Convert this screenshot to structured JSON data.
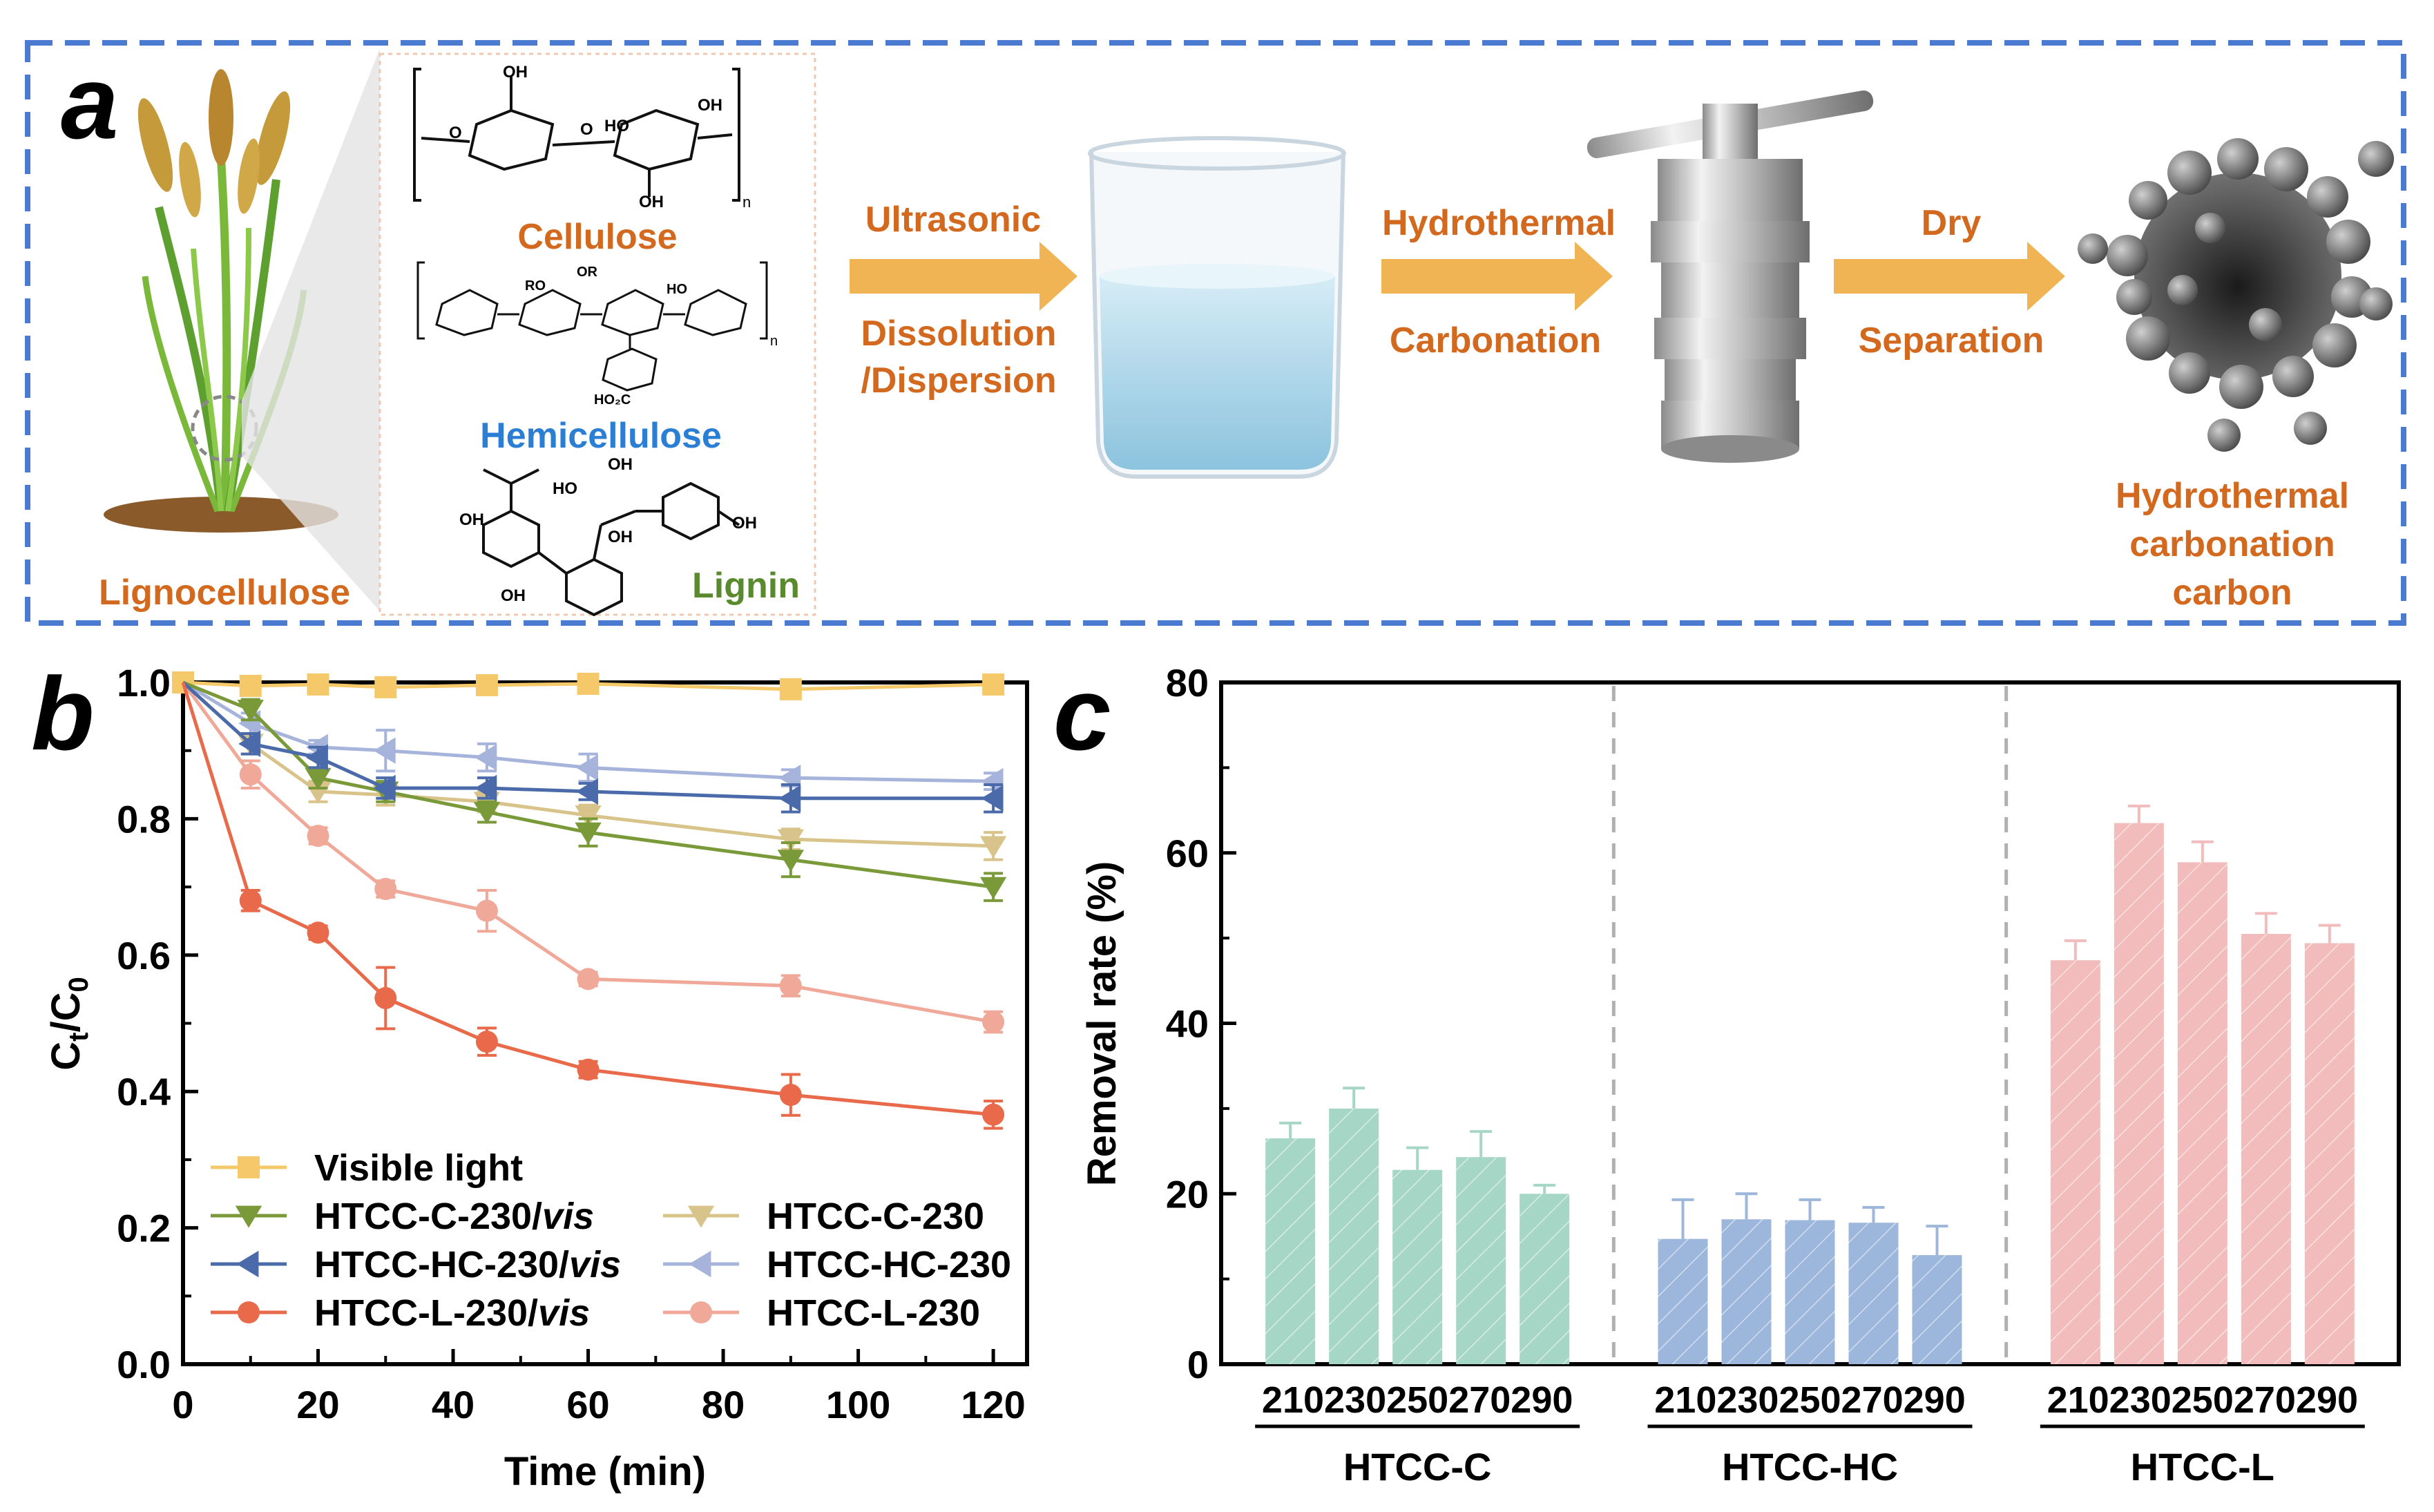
{
  "panel_a": {
    "letter": "a",
    "lignocellulose": "Lignocellulose",
    "cellulose": "Cellulose",
    "hemicellulose": "Hemicellulose",
    "lignin": "Lignin",
    "step1_top": "Ultrasonic",
    "step1_bottom_1": "Dissolution",
    "step1_bottom_2": "/Dispersion",
    "step2_top": "Hydrothermal",
    "step2_bottom": "Carbonation",
    "step3_top": "Dry",
    "step3_bottom": "Separation",
    "product_1": "Hydrothermal",
    "product_2": "carbonation",
    "product_3": "carbon",
    "chem_labels": {
      "oh": "OH",
      "o": "O",
      "n": "n",
      "ro": "RO",
      "or": "OR",
      "ho": "HO",
      "ho2c": "HO₂C"
    },
    "colors": {
      "orange": "#d2691e",
      "blue": "#2a7fd4",
      "green": "#5a8a2e",
      "border": "#4a7bd0",
      "arrow": "#f0b454"
    }
  },
  "chart_data": [
    {
      "panel": "b",
      "type": "line",
      "xlabel": "Time (min)",
      "ylabel_main": "C",
      "ylabel_sub1": "t",
      "ylabel_mid": "/C",
      "ylabel_sub2": "0",
      "xlim": [
        0,
        125
      ],
      "ylim": [
        0,
        1.0
      ],
      "x_ticks": [
        "0",
        "20",
        "40",
        "60",
        "80",
        "100",
        "120"
      ],
      "y_ticks": [
        "0.0",
        "0.2",
        "0.4",
        "0.6",
        "0.8",
        "1.0"
      ],
      "x": [
        0,
        10,
        20,
        30,
        45,
        60,
        90,
        120
      ],
      "series": [
        {
          "name": "Visible light",
          "italic": "",
          "marker": "square",
          "color": "#f5c96a",
          "values": [
            1.0,
            0.995,
            0.997,
            0.993,
            0.996,
            0.998,
            0.99,
            0.997
          ],
          "err": [
            0,
            0.01,
            0.01,
            0.01,
            0.008,
            0.006,
            0.01,
            0.008
          ]
        },
        {
          "name": "HTCC-C-230/",
          "italic": "vis",
          "marker": "tri-down",
          "color": "#7a9a3a",
          "values": [
            1.0,
            0.96,
            0.86,
            0.84,
            0.81,
            0.78,
            0.74,
            0.7
          ],
          "err": [
            0,
            0.015,
            0.015,
            0.015,
            0.015,
            0.02,
            0.025,
            0.02
          ]
        },
        {
          "name": "HTCC-HC-230/",
          "italic": "vis",
          "marker": "tri-left",
          "color": "#4a6aaa",
          "values": [
            1.0,
            0.91,
            0.89,
            0.845,
            0.845,
            0.84,
            0.83,
            0.83
          ],
          "err": [
            0,
            0.015,
            0.015,
            0.015,
            0.015,
            0.012,
            0.02,
            0.02
          ]
        },
        {
          "name": "HTCC-L-230/",
          "italic": "vis",
          "marker": "circle",
          "color": "#e86a4a",
          "values": [
            1.0,
            0.68,
            0.633,
            0.537,
            0.473,
            0.432,
            0.395,
            0.366
          ],
          "err": [
            0,
            0.015,
            0.01,
            0.045,
            0.02,
            0.012,
            0.03,
            0.02
          ]
        },
        {
          "name": "HTCC-C-230",
          "italic": "",
          "marker": "tri-down",
          "color": "#d8c48a",
          "values": [
            1.0,
            0.91,
            0.84,
            0.835,
            0.825,
            0.805,
            0.77,
            0.76
          ],
          "err": [
            0,
            0.015,
            0.015,
            0.015,
            0.015,
            0.015,
            0.015,
            0.02
          ]
        },
        {
          "name": "HTCC-HC-230",
          "italic": "",
          "marker": "tri-left",
          "color": "#a6b4dc",
          "values": [
            1.0,
            0.94,
            0.905,
            0.9,
            0.89,
            0.875,
            0.86,
            0.855
          ],
          "err": [
            0,
            0.015,
            0.01,
            0.03,
            0.02,
            0.02,
            0.012,
            0.012
          ]
        },
        {
          "name": "HTCC-L-230",
          "italic": "",
          "marker": "circle",
          "color": "#f0a898",
          "values": [
            1.0,
            0.865,
            0.775,
            0.697,
            0.665,
            0.565,
            0.555,
            0.502
          ],
          "err": [
            0,
            0.02,
            0.012,
            0.012,
            0.03,
            0.01,
            0.015,
            0.015
          ]
        }
      ],
      "legend": "bottom-left",
      "letter": "b"
    },
    {
      "panel": "c",
      "type": "bar",
      "ylabel": "Removal rate (%)",
      "ylim": [
        0,
        80
      ],
      "y_ticks": [
        "0",
        "20",
        "40",
        "60",
        "80"
      ],
      "categories": [
        "210",
        "230",
        "250",
        "270",
        "290"
      ],
      "groups": [
        {
          "name": "HTCC-C",
          "color": "#a6d6c6",
          "values": [
            26.5,
            30.0,
            22.8,
            24.3,
            20.0
          ],
          "err": [
            1.8,
            2.4,
            2.6,
            3.0,
            1.0
          ]
        },
        {
          "name": "HTCC-HC",
          "color": "#9cb6dc",
          "values": [
            14.7,
            17.0,
            16.9,
            16.6,
            12.8
          ],
          "err": [
            4.6,
            3.0,
            2.4,
            1.8,
            3.4
          ]
        },
        {
          "name": "HTCC-L",
          "color": "#f2bcbc",
          "values": [
            47.4,
            63.5,
            58.9,
            50.5,
            49.4
          ],
          "err": [
            2.3,
            2.0,
            2.4,
            2.4,
            2.1
          ]
        }
      ],
      "letter": "c"
    }
  ]
}
